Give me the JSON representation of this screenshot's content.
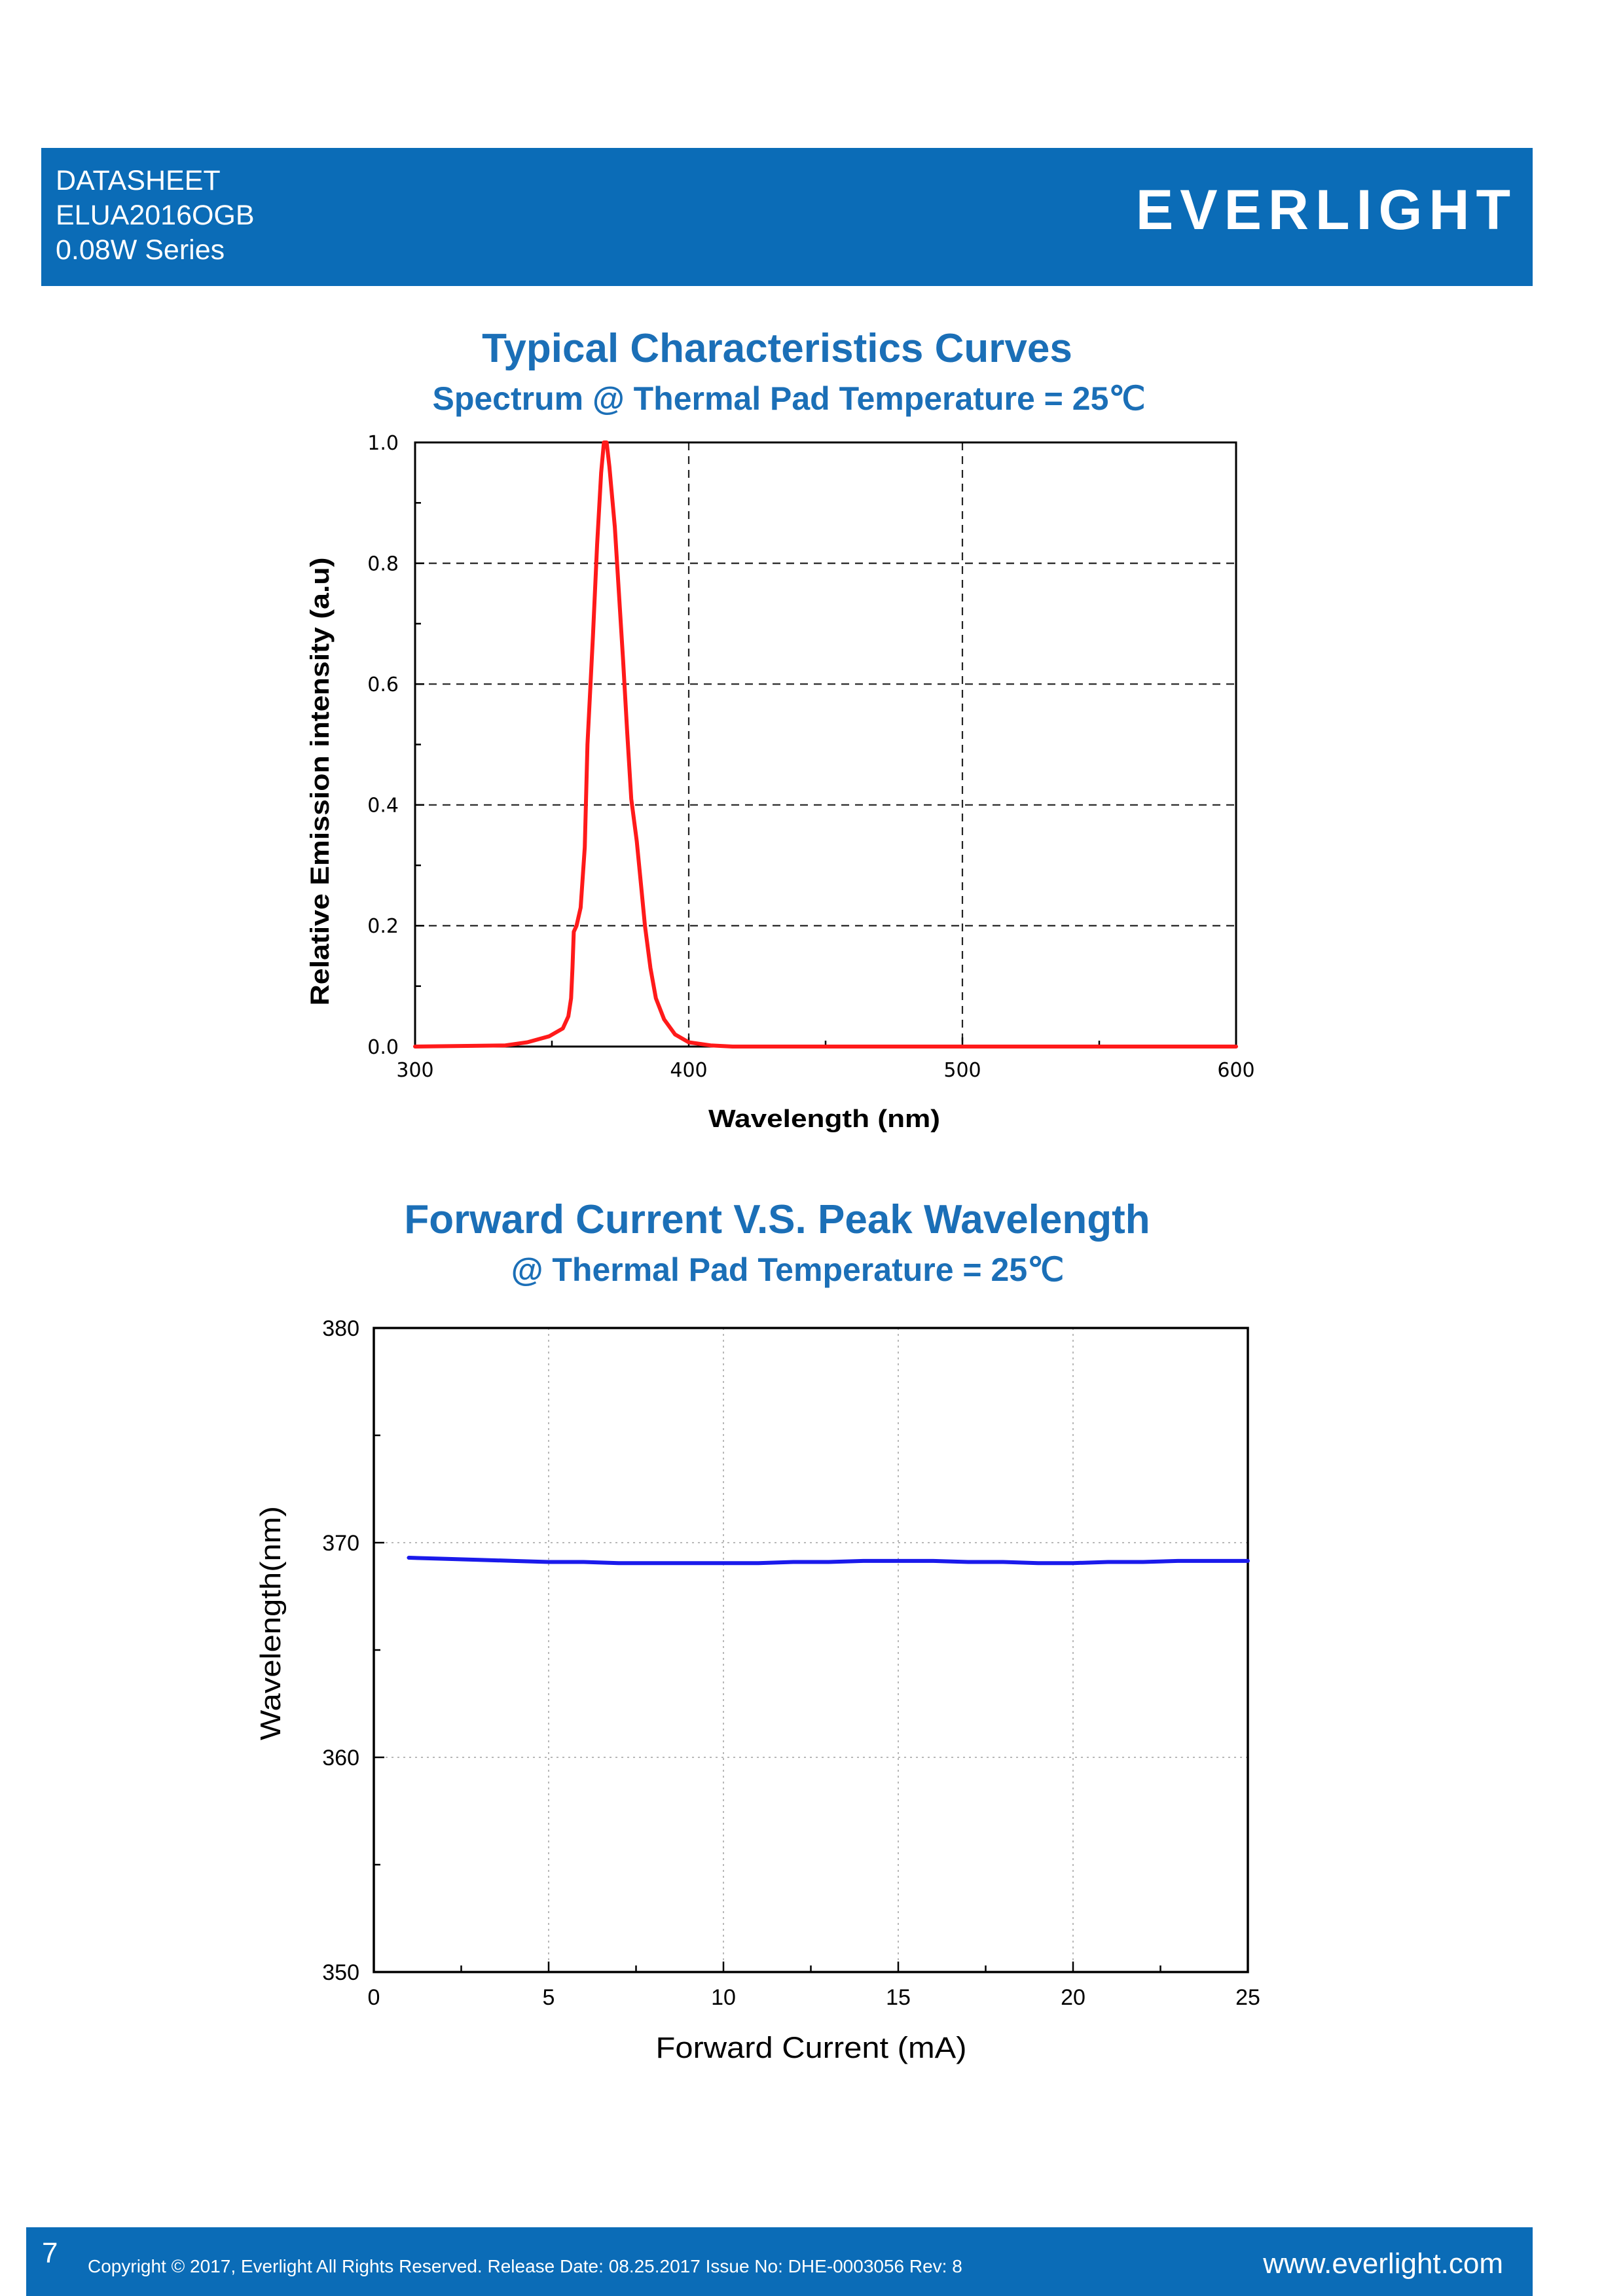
{
  "header": {
    "line1": "DATASHEET",
    "line2": "ELUA2016OGB",
    "line3": "0.08W Series",
    "logo_text": "EVERLIGHT"
  },
  "section": {
    "title": "Typical Characteristics Curves"
  },
  "chart_data": [
    {
      "type": "line",
      "title": "Spectrum @ Thermal Pad Temperature = 25℃",
      "xlabel": "Wavelength (nm)",
      "ylabel": "Relative Emission intensity (a.u)",
      "xlim": [
        300,
        600
      ],
      "ylim": [
        0,
        1
      ],
      "xticks": [
        "300",
        "400",
        "500",
        "600"
      ],
      "yticks": [
        "0.0",
        "0.2",
        "0.4",
        "0.6",
        "0.8",
        "1.0"
      ],
      "grid": true,
      "series": [
        {
          "color": "#ff1a1a",
          "x": [
            300,
            333,
            341,
            349,
            354,
            356,
            357,
            357.5,
            358,
            359,
            360.5,
            362,
            363,
            365,
            366.5,
            368,
            369,
            370,
            371,
            373,
            374.5,
            376,
            377.5,
            379,
            381,
            382.5,
            384,
            386,
            388,
            391,
            395,
            400,
            408,
            416,
            600
          ],
          "y": [
            0,
            0.002,
            0.007,
            0.017,
            0.03,
            0.05,
            0.08,
            0.13,
            0.19,
            0.2,
            0.23,
            0.33,
            0.5,
            0.68,
            0.83,
            0.95,
            1.0,
            1.0,
            0.96,
            0.86,
            0.75,
            0.64,
            0.52,
            0.41,
            0.34,
            0.27,
            0.2,
            0.13,
            0.08,
            0.045,
            0.02,
            0.007,
            0.002,
            0,
            0
          ]
        }
      ]
    },
    {
      "type": "line",
      "title": "Forward Current V.S. Peak Wavelength",
      "subtitle": "@ Thermal Pad Temperature = 25℃",
      "xlabel": "Forward Current (mA)",
      "ylabel": "Wavelength(nm)",
      "xlim": [
        0,
        25
      ],
      "ylim": [
        350,
        380
      ],
      "xticks": [
        "0",
        "5",
        "10",
        "15",
        "20",
        "25"
      ],
      "yticks": [
        "350",
        "360",
        "370",
        "380"
      ],
      "grid": true,
      "series": [
        {
          "color": "#1a1aeb",
          "x": [
            1,
            2,
            3,
            4,
            5,
            6,
            7,
            8,
            9,
            10,
            11,
            12,
            13,
            14,
            15,
            16,
            17,
            18,
            19,
            20,
            21,
            22,
            23,
            24,
            25
          ],
          "y": [
            369.3,
            369.25,
            369.2,
            369.15,
            369.1,
            369.1,
            369.05,
            369.05,
            369.05,
            369.05,
            369.05,
            369.1,
            369.1,
            369.15,
            369.15,
            369.15,
            369.1,
            369.1,
            369.05,
            369.05,
            369.1,
            369.1,
            369.15,
            369.15,
            369.15
          ]
        }
      ]
    }
  ],
  "footer": {
    "page_number": "7",
    "copyright": "Copyright © 2017, Everlight All Rights Reserved. Release Date: 08.25.2017 Issue No: DHE-0003056 Rev: 8",
    "website": "www.everlight.com"
  },
  "colors": {
    "brand_blue": "#0b6cb7",
    "title_blue": "#1b6fb7"
  }
}
